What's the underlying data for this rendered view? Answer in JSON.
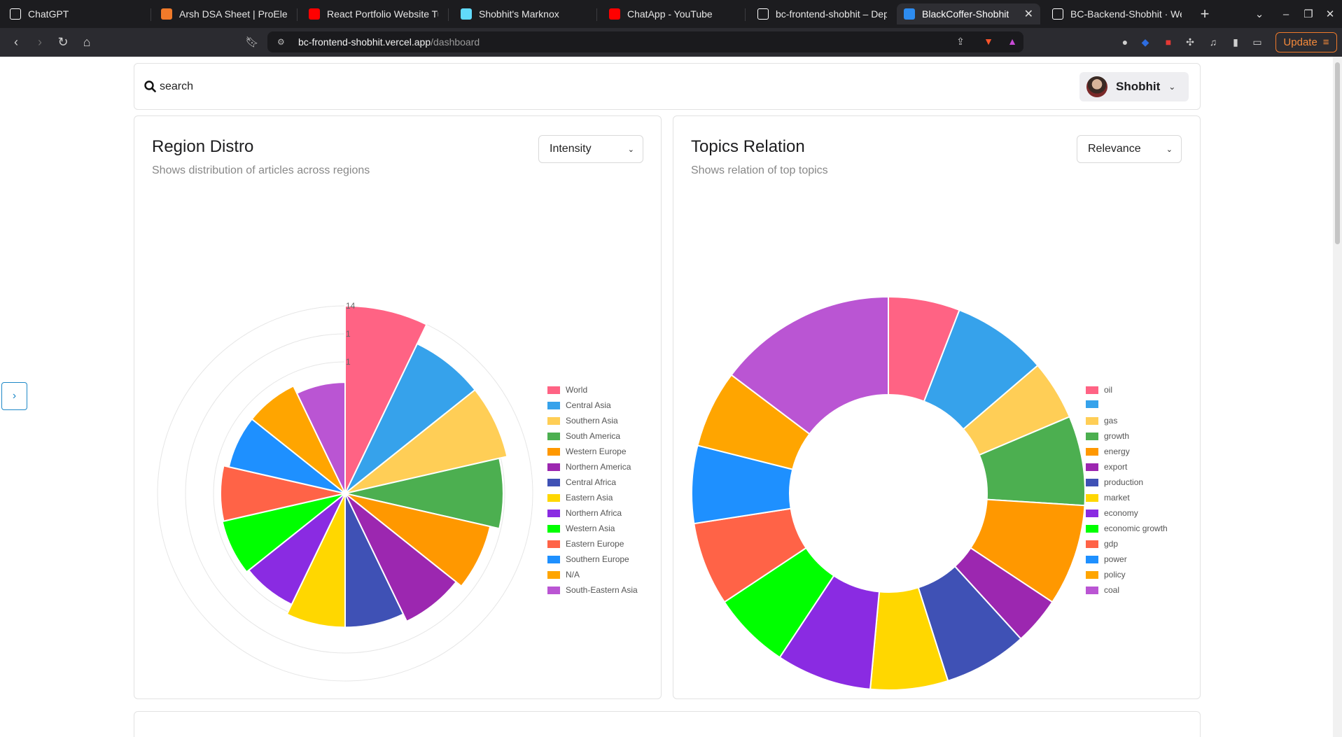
{
  "browser": {
    "tabs": [
      {
        "title": "ChatGPT",
        "icon": "chatgpt-icon",
        "color": "#ffffff"
      },
      {
        "title": "Arsh DSA Sheet | ProElevate",
        "icon": "proelevate-icon",
        "color": "#f07a2a"
      },
      {
        "title": "React Portfolio Website Tuto",
        "icon": "youtube-icon",
        "color": "#ff0000"
      },
      {
        "title": "Shobhit's Marknox",
        "icon": "react-icon",
        "color": "#61dafb"
      },
      {
        "title": "ChatApp - YouTube",
        "icon": "youtube-icon",
        "color": "#ff0000"
      },
      {
        "title": "bc-frontend-shobhit – Deplo",
        "icon": "vercel-icon",
        "color": "#ffffff"
      },
      {
        "title": "BlackCoffer-Shobhit",
        "icon": "app-icon",
        "color": "#2d8cf0",
        "active": true
      },
      {
        "title": "BC-Backend-Shobhit · Web",
        "icon": "render-icon",
        "color": "#ffffff"
      }
    ],
    "url_host": "bc-frontend-shobhit.vercel.app",
    "url_path": "/dashboard",
    "update_label": "Update"
  },
  "page": {
    "search": {
      "placeholder": "search"
    },
    "user": {
      "name": "Shobhit"
    },
    "region_card": {
      "title": "Region Distro",
      "subtitle": "Shows distribution of articles across regions",
      "select_value": "Intensity"
    },
    "topics_card": {
      "title": "Topics Relation",
      "subtitle": "Shows relation of top topics",
      "select_value": "Relevance"
    }
  },
  "chart_data": [
    {
      "type": "polarArea",
      "title": "Region Distro",
      "r_ticks": [
        "14",
        "1",
        "1"
      ],
      "categories": [
        "World",
        "Central Asia",
        "Southern Asia",
        "South America",
        "Western Europe",
        "Northern America",
        "Central Africa",
        "Eastern Asia",
        "Northern Africa",
        "Western Asia",
        "Eastern Europe",
        "Southern Europe",
        "N/A",
        "South-Eastern Asia"
      ],
      "values": [
        14,
        12.4,
        12.4,
        11.8,
        11.1,
        10.6,
        10,
        10,
        9.2,
        9.4,
        9.3,
        8.9,
        8.9,
        8.3
      ],
      "rmax": 14,
      "colors": [
        "#ff6384",
        "#36a2eb",
        "#ffce56",
        "#4caf50",
        "#ff9800",
        "#9c27b0",
        "#3f51b5",
        "#ffd700",
        "#8a2be2",
        "#00ff00",
        "#ff6347",
        "#1e90ff",
        "#ffa500",
        "#ba55d3"
      ],
      "legend": "right"
    },
    {
      "type": "doughnut",
      "title": "Topics Relation",
      "categories": [
        "oil",
        "",
        "gas",
        "growth",
        "energy",
        "export",
        "production",
        "market",
        "economy",
        "economic growth",
        "gdp",
        "power",
        "policy",
        "coal"
      ],
      "values": [
        6,
        8,
        5,
        7.5,
        8.5,
        4,
        7,
        6.5,
        8,
        6.5,
        7,
        6.5,
        6.5,
        15
      ],
      "colors": [
        "#ff6384",
        "#36a2eb",
        "#ffce56",
        "#4caf50",
        "#ff9800",
        "#9c27b0",
        "#3f51b5",
        "#ffd700",
        "#8a2be2",
        "#00ff00",
        "#ff6347",
        "#1e90ff",
        "#ffa500",
        "#ba55d3"
      ],
      "legend": "right"
    }
  ]
}
